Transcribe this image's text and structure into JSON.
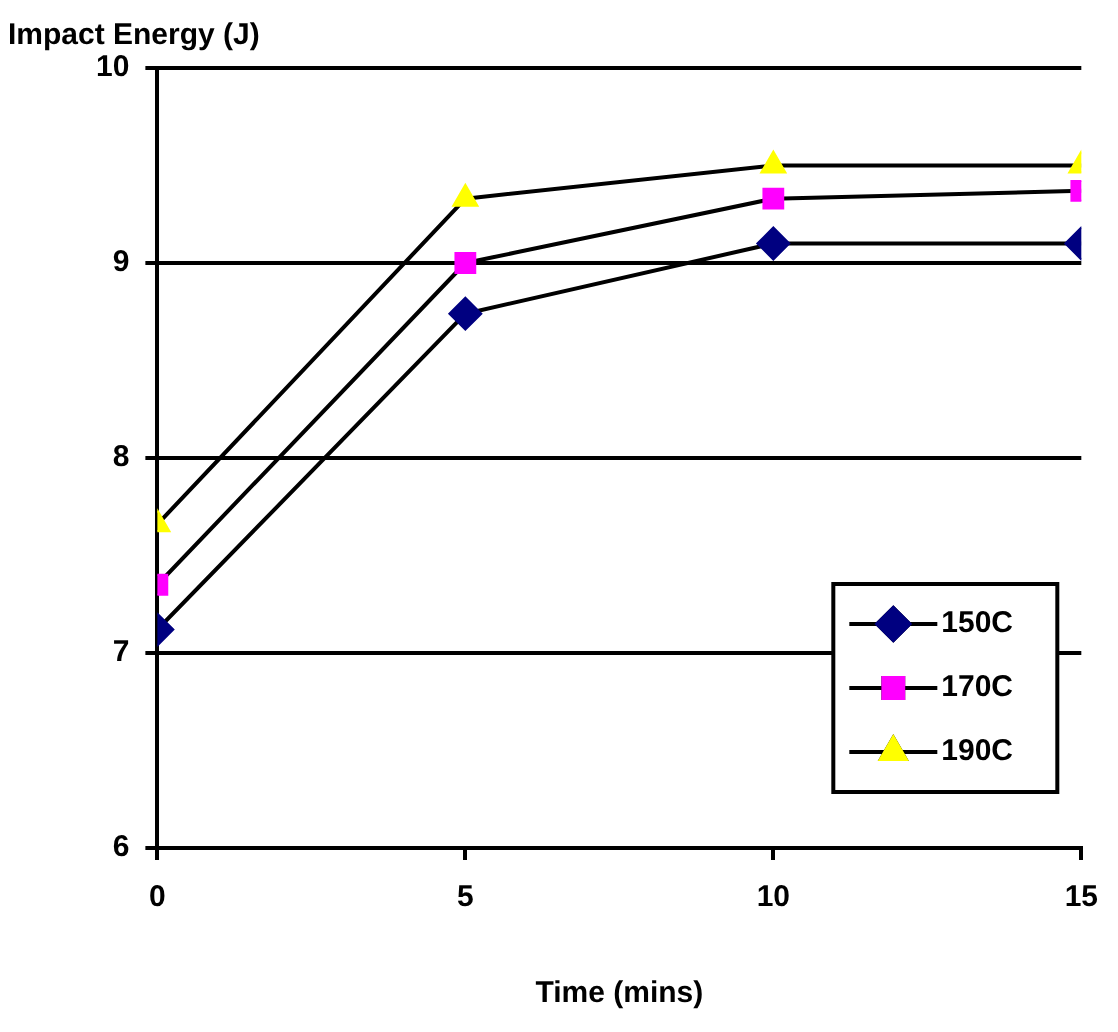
{
  "chart_data": {
    "type": "line",
    "xlabel": "Time (mins)",
    "ylabel": "Impact Energy (J)",
    "x": [
      0,
      5,
      10,
      15
    ],
    "xlim": [
      0,
      15
    ],
    "xticks": [
      0,
      5,
      10,
      15
    ],
    "ylim": [
      6,
      10
    ],
    "yticks": [
      6,
      7,
      8,
      9,
      10
    ],
    "grid": "y",
    "legend": "bottom right",
    "line_style": "solid",
    "series": [
      {
        "name": "150C",
        "color": "#000080",
        "marker": "diamond",
        "values": [
          7.12,
          8.74,
          9.1,
          9.1
        ]
      },
      {
        "name": "170C",
        "color": "#ff00ff",
        "marker": "square",
        "values": [
          7.35,
          9.0,
          9.33,
          9.37
        ]
      },
      {
        "name": "190C",
        "color": "#ffff00",
        "marker": "triangle",
        "values": [
          7.66,
          9.33,
          9.5,
          9.5
        ]
      }
    ]
  }
}
